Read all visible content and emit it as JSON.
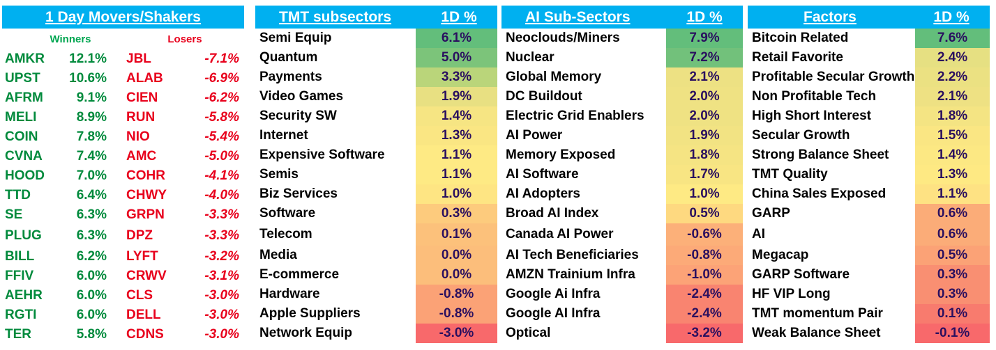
{
  "movers": {
    "title": "1 Day Movers/Shakers",
    "winners_label": "Winners",
    "losers_label": "Losers",
    "winners": [
      {
        "t": "AMKR",
        "v": "12.1%"
      },
      {
        "t": "UPST",
        "v": "10.6%"
      },
      {
        "t": "AFRM",
        "v": "9.1%"
      },
      {
        "t": "MELI",
        "v": "8.9%"
      },
      {
        "t": "COIN",
        "v": "7.8%"
      },
      {
        "t": "CVNA",
        "v": "7.4%"
      },
      {
        "t": "HOOD",
        "v": "7.0%"
      },
      {
        "t": "TTD",
        "v": "6.4%"
      },
      {
        "t": "SE",
        "v": "6.3%"
      },
      {
        "t": "PLUG",
        "v": "6.3%"
      },
      {
        "t": "BILL",
        "v": "6.2%"
      },
      {
        "t": "FFIV",
        "v": "6.0%"
      },
      {
        "t": "AEHR",
        "v": "6.0%"
      },
      {
        "t": "RGTI",
        "v": "6.0%"
      },
      {
        "t": "TER",
        "v": "5.8%"
      }
    ],
    "losers": [
      {
        "t": "JBL",
        "v": "-7.1%"
      },
      {
        "t": "ALAB",
        "v": "-6.9%"
      },
      {
        "t": "CIEN",
        "v": "-6.2%"
      },
      {
        "t": "RUN",
        "v": "-5.8%"
      },
      {
        "t": "NIO",
        "v": "-5.4%"
      },
      {
        "t": "AMC",
        "v": "-5.0%"
      },
      {
        "t": "COHR",
        "v": "-4.1%"
      },
      {
        "t": "CHWY",
        "v": "-4.0%"
      },
      {
        "t": "GRPN",
        "v": "-3.3%"
      },
      {
        "t": "DPZ",
        "v": "-3.3%"
      },
      {
        "t": "LYFT",
        "v": "-3.2%"
      },
      {
        "t": "CRWV",
        "v": "-3.1%"
      },
      {
        "t": "CLS",
        "v": "-3.0%"
      },
      {
        "t": "DELL",
        "v": "-3.0%"
      },
      {
        "t": "CDNS",
        "v": "-3.0%"
      }
    ]
  },
  "tmt": {
    "title": "TMT subsectors",
    "col": "1D %",
    "rows": [
      {
        "n": "Semi Equip",
        "v": "6.1%",
        "c": "#63be7b"
      },
      {
        "n": "Quantum",
        "v": "5.0%",
        "c": "#7cc47a"
      },
      {
        "n": "Payments",
        "v": "3.3%",
        "c": "#bad57a"
      },
      {
        "n": "Video Games",
        "v": "1.9%",
        "c": "#e8e082"
      },
      {
        "n": "Security SW",
        "v": "1.4%",
        "c": "#f6e583"
      },
      {
        "n": "Internet",
        "v": "1.3%",
        "c": "#fae683"
      },
      {
        "n": "Expensive Software",
        "v": "1.1%",
        "c": "#feea84"
      },
      {
        "n": "Semis",
        "v": "1.1%",
        "c": "#feea84"
      },
      {
        "n": "Biz Services",
        "v": "1.0%",
        "c": "#fee583"
      },
      {
        "n": "Software",
        "v": "0.3%",
        "c": "#fdcb7d"
      },
      {
        "n": "Telecom",
        "v": "0.1%",
        "c": "#fcc17b"
      },
      {
        "n": "Media",
        "v": "0.0%",
        "c": "#fcbe7b"
      },
      {
        "n": "E-commerce",
        "v": "0.0%",
        "c": "#fcbe7b"
      },
      {
        "n": "Hardware",
        "v": "-0.8%",
        "c": "#fba276"
      },
      {
        "n": "Apple Suppliers",
        "v": "-0.8%",
        "c": "#fba276"
      },
      {
        "n": "Network Equip",
        "v": "-3.0%",
        "c": "#f8696b"
      }
    ]
  },
  "ai": {
    "title": "AI Sub-Sectors",
    "col": "1D %",
    "rows": [
      {
        "n": "Neoclouds/Miners",
        "v": "7.9%",
        "c": "#63be7b"
      },
      {
        "n": "Nuclear",
        "v": "7.2%",
        "c": "#72c17b"
      },
      {
        "n": "Global Memory",
        "v": "2.1%",
        "c": "#ede183"
      },
      {
        "n": "DC Buildout",
        "v": "2.0%",
        "c": "#efe283"
      },
      {
        "n": "Electric Grid Enablers",
        "v": "2.0%",
        "c": "#efe283"
      },
      {
        "n": "AI Power",
        "v": "1.9%",
        "c": "#f2e383"
      },
      {
        "n": "Memory Exposed",
        "v": "1.8%",
        "c": "#f5e483"
      },
      {
        "n": "AI Software",
        "v": "1.7%",
        "c": "#f8e583"
      },
      {
        "n": "AI Adopters",
        "v": "1.0%",
        "c": "#feea84"
      },
      {
        "n": "Broad AI Index",
        "v": "0.5%",
        "c": "#fed980"
      },
      {
        "n": "Canada AI Power",
        "v": "-0.6%",
        "c": "#fcb079"
      },
      {
        "n": "AI Tech Beneficiaries",
        "v": "-0.8%",
        "c": "#fcaa78"
      },
      {
        "n": "AMZN Trainium Infra",
        "v": "-1.0%",
        "c": "#fca377"
      },
      {
        "n": "Google Ai Infra",
        "v": "-2.4%",
        "c": "#f98470"
      },
      {
        "n": "Google AI Infra",
        "v": "-2.4%",
        "c": "#f98470"
      },
      {
        "n": "Optical",
        "v": "-3.2%",
        "c": "#f8696b"
      }
    ]
  },
  "factors": {
    "title": "Factors",
    "col": "1D %",
    "rows": [
      {
        "n": "Bitcoin Related",
        "v": "7.6%",
        "c": "#63be7b"
      },
      {
        "n": "Retail Favorite",
        "v": "2.4%",
        "c": "#e6e082"
      },
      {
        "n": "Profitable Secular Growth",
        "v": "2.2%",
        "c": "#ebe182"
      },
      {
        "n": "Non Profitable Tech",
        "v": "2.1%",
        "c": "#eee183"
      },
      {
        "n": "High Short Interest",
        "v": "1.8%",
        "c": "#f4e483"
      },
      {
        "n": "Secular Growth",
        "v": "1.5%",
        "c": "#fae683"
      },
      {
        "n": "Strong Balance Sheet",
        "v": "1.4%",
        "c": "#fce883"
      },
      {
        "n": "TMT Quality",
        "v": "1.3%",
        "c": "#fee983"
      },
      {
        "n": "China Sales Exposed",
        "v": "1.1%",
        "c": "#fee283"
      },
      {
        "n": "GARP",
        "v": "0.6%",
        "c": "#fbac78"
      },
      {
        "n": "AI",
        "v": "0.6%",
        "c": "#fbac78"
      },
      {
        "n": "Megacap",
        "v": "0.5%",
        "c": "#fba276"
      },
      {
        "n": "GARP Software",
        "v": "0.3%",
        "c": "#f98f72"
      },
      {
        "n": "HF VIP Long",
        "v": "0.3%",
        "c": "#f98f72"
      },
      {
        "n": "TMT momentum Pair",
        "v": "0.1%",
        "c": "#f87b6e"
      },
      {
        "n": "Weak Balance Sheet",
        "v": "-0.1%",
        "c": "#f8696b"
      }
    ]
  }
}
